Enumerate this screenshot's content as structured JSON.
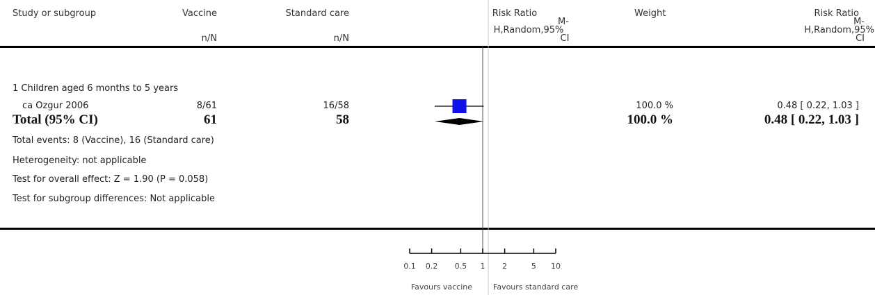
{
  "header": {
    "study_col": "Study or subgroup",
    "vaccine_col": "Vaccine",
    "standard_col": "Standard care",
    "rr_col_line1": "Risk Ratio",
    "rr_col_line2": "M-",
    "rr_col_line3": "H,Random,95%",
    "rr_col_line4": "CI",
    "weight_col": "Weight",
    "rr2_col_line1": "Risk Ratio",
    "rr2_col_line2": "M-",
    "rr2_col_line3": "H,Random,95%",
    "rr2_col_line4": "CI",
    "vaccine_sub": "n/N",
    "standard_sub": "n/N"
  },
  "subgroup_label": "1 Children aged 6 months to 5 years",
  "study": {
    "name": "ca Ozgur 2006",
    "vaccine": "8/61",
    "standard": "16/58",
    "weight": "100.0 %",
    "rr_text": "0.48 [ 0.22, 1.03 ]"
  },
  "total": {
    "label": "Total (95% CI)",
    "vaccine": "61",
    "standard": "58",
    "weight": "100.0 %",
    "rr_text": "0.48 [ 0.22, 1.03 ]"
  },
  "footnotes": {
    "events": "Total events: 8 (Vaccine), 16 (Standard care)",
    "heterogeneity": "Heterogeneity: not applicable",
    "overall": "Test for overall effect: Z = 1.90 (P = 0.058)",
    "subgroup": "Test for subgroup differences: Not applicable"
  },
  "axis": {
    "favours_left": "Favours vaccine",
    "favours_right": "Favours standard care"
  },
  "chart_data": {
    "type": "forest",
    "scale": "log",
    "xlim": [
      0.1,
      10
    ],
    "ticks": [
      {
        "value": 0.1,
        "label": "0.1"
      },
      {
        "value": 0.2,
        "label": "0.2"
      },
      {
        "value": 0.5,
        "label": "0.5"
      },
      {
        "value": 1,
        "label": "1"
      },
      {
        "value": 2,
        "label": "2"
      },
      {
        "value": 5,
        "label": "5"
      },
      {
        "value": 10,
        "label": "10"
      }
    ],
    "studies": [
      {
        "name": "ca Ozgur 2006",
        "rr": 0.48,
        "ci": [
          0.22,
          1.03
        ],
        "weight": 100.0
      }
    ],
    "total": {
      "rr": 0.48,
      "ci": [
        0.22,
        1.03
      ]
    },
    "colors": {
      "study_marker": "#1010e8",
      "total_diamond": "#000000",
      "axis": "#000000"
    }
  }
}
